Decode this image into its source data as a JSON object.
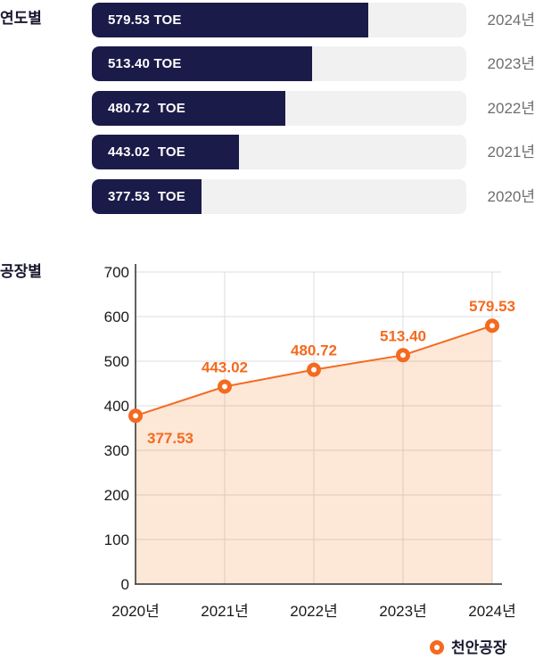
{
  "sections": {
    "yearly_title": "연도별",
    "factory_title": "공장별"
  },
  "chart_data": [
    {
      "type": "bar",
      "orientation": "horizontal",
      "title": "연도별",
      "unit": "TOE",
      "categories": [
        "2024년",
        "2023년",
        "2022년",
        "2021년",
        "2020년"
      ],
      "values": [
        579.53,
        513.4,
        480.72,
        443.02,
        377.53
      ],
      "bar_labels": [
        "579.53 TOE",
        "513.40 TOE",
        "480.72  TOE",
        "443.02  TOE",
        "377.53  TOE"
      ],
      "bar_color": "#1b1b4a",
      "track_color": "#f1f1f1",
      "value_label_color": "#ffffff",
      "category_label_color": "#6e6e6e",
      "width_pct": [
        73.8,
        58.8,
        51.7,
        39.3,
        29.3
      ]
    },
    {
      "type": "area",
      "title": "공장별",
      "categories": [
        "2020년",
        "2021년",
        "2022년",
        "2023년",
        "2024년"
      ],
      "series": [
        {
          "name": "천안공장",
          "values": [
            377.53,
            443.02,
            480.72,
            513.4,
            579.53
          ]
        }
      ],
      "point_labels": [
        "377.53",
        "443.02",
        "480.72",
        "513.40",
        "579.53"
      ],
      "ylim": [
        0,
        700
      ],
      "yticks": [
        0,
        100,
        200,
        300,
        400,
        500,
        600,
        700
      ],
      "grid": true,
      "legend_position": "bottom-right",
      "line_color": "#f46a1f",
      "fill_color": "rgba(246,122,34,0.18)",
      "marker_fill": "#ffffff",
      "grid_color": "#dcdcdc",
      "axis_color": "#2f2f2f",
      "tick_label_color": "#1a1a1a"
    }
  ]
}
